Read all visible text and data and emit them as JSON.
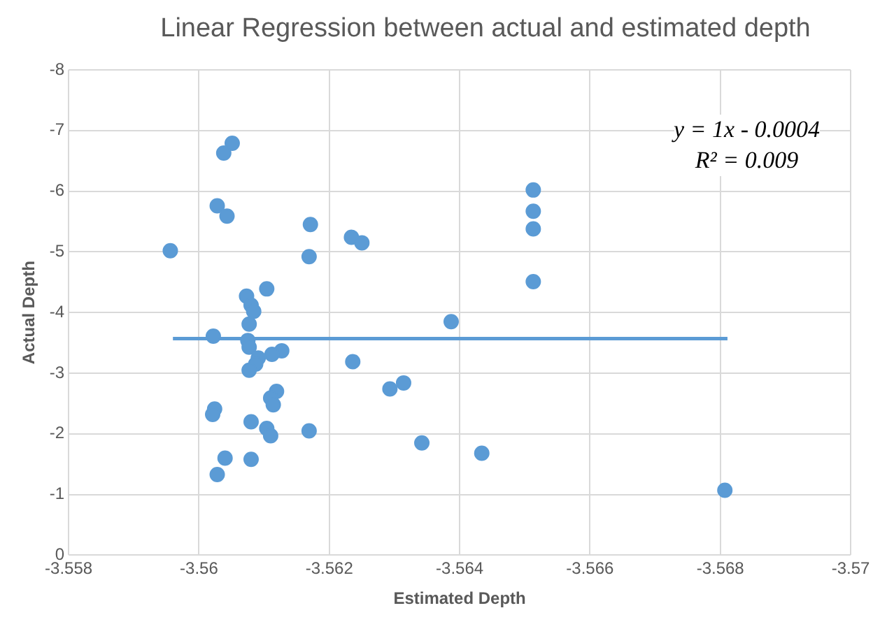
{
  "chart_data": {
    "type": "scatter",
    "title": "Linear Regression between actual and estimated depth",
    "xlabel": "Estimated Depth",
    "ylabel": "Actual Depth",
    "annotations": [
      "y = 1x - 0.0004",
      "R² = 0.009"
    ],
    "xlim": [
      -3.558,
      -3.57
    ],
    "xticks": [
      -3.558,
      -3.56,
      -3.562,
      -3.564,
      -3.566,
      -3.568,
      -3.57
    ],
    "ylim": [
      0,
      -8
    ],
    "yticks": [
      0,
      -1,
      -2,
      -3,
      -4,
      -5,
      -6,
      -7,
      -8
    ],
    "grid": true,
    "legend": false,
    "marker": "circle",
    "series": [
      {
        "color": "#5b9bd5",
        "x": [
          -3.56051,
          -3.56038,
          -3.56028,
          -3.56043,
          -3.55956,
          -3.56171,
          -3.56169,
          -3.56104,
          -3.56073,
          -3.5608,
          -3.56084,
          -3.56077,
          -3.56022,
          -3.56075,
          -3.56077,
          -3.56127,
          -3.56112,
          -3.56091,
          -3.56087,
          -3.56077,
          -3.56119,
          -3.5611,
          -3.56114,
          -3.56024,
          -3.56021,
          -3.5608,
          -3.56104,
          -3.5611,
          -3.56169,
          -3.5604,
          -3.5608,
          -3.56028,
          -3.56234,
          -3.5625,
          -3.56236,
          -3.56293,
          -3.56314,
          -3.56387,
          -3.56342,
          -3.56434,
          -3.56513,
          -3.56513,
          -3.56513,
          -3.56513,
          -3.56807
        ],
        "values": [
          -6.79,
          -6.63,
          -5.76,
          -5.59,
          -5.02,
          -5.45,
          -4.92,
          -4.39,
          -4.27,
          -4.12,
          -4.02,
          -3.81,
          -3.61,
          -3.54,
          -3.43,
          -3.37,
          -3.31,
          -3.25,
          -3.15,
          -3.05,
          -2.7,
          -2.59,
          -2.48,
          -2.41,
          -2.32,
          -2.2,
          -2.09,
          -1.97,
          -2.05,
          -1.6,
          -1.58,
          -1.33,
          -5.24,
          -5.15,
          -3.19,
          -2.74,
          -2.84,
          -3.85,
          -1.85,
          -1.68,
          -6.02,
          -5.67,
          -5.38,
          -4.51,
          -1.07
        ]
      },
      {
        "type": "line",
        "marker": "none",
        "color": "#5b9bd5",
        "x": [
          -3.5596,
          -3.56811
        ],
        "values": [
          -3.57,
          -3.57
        ]
      }
    ]
  }
}
